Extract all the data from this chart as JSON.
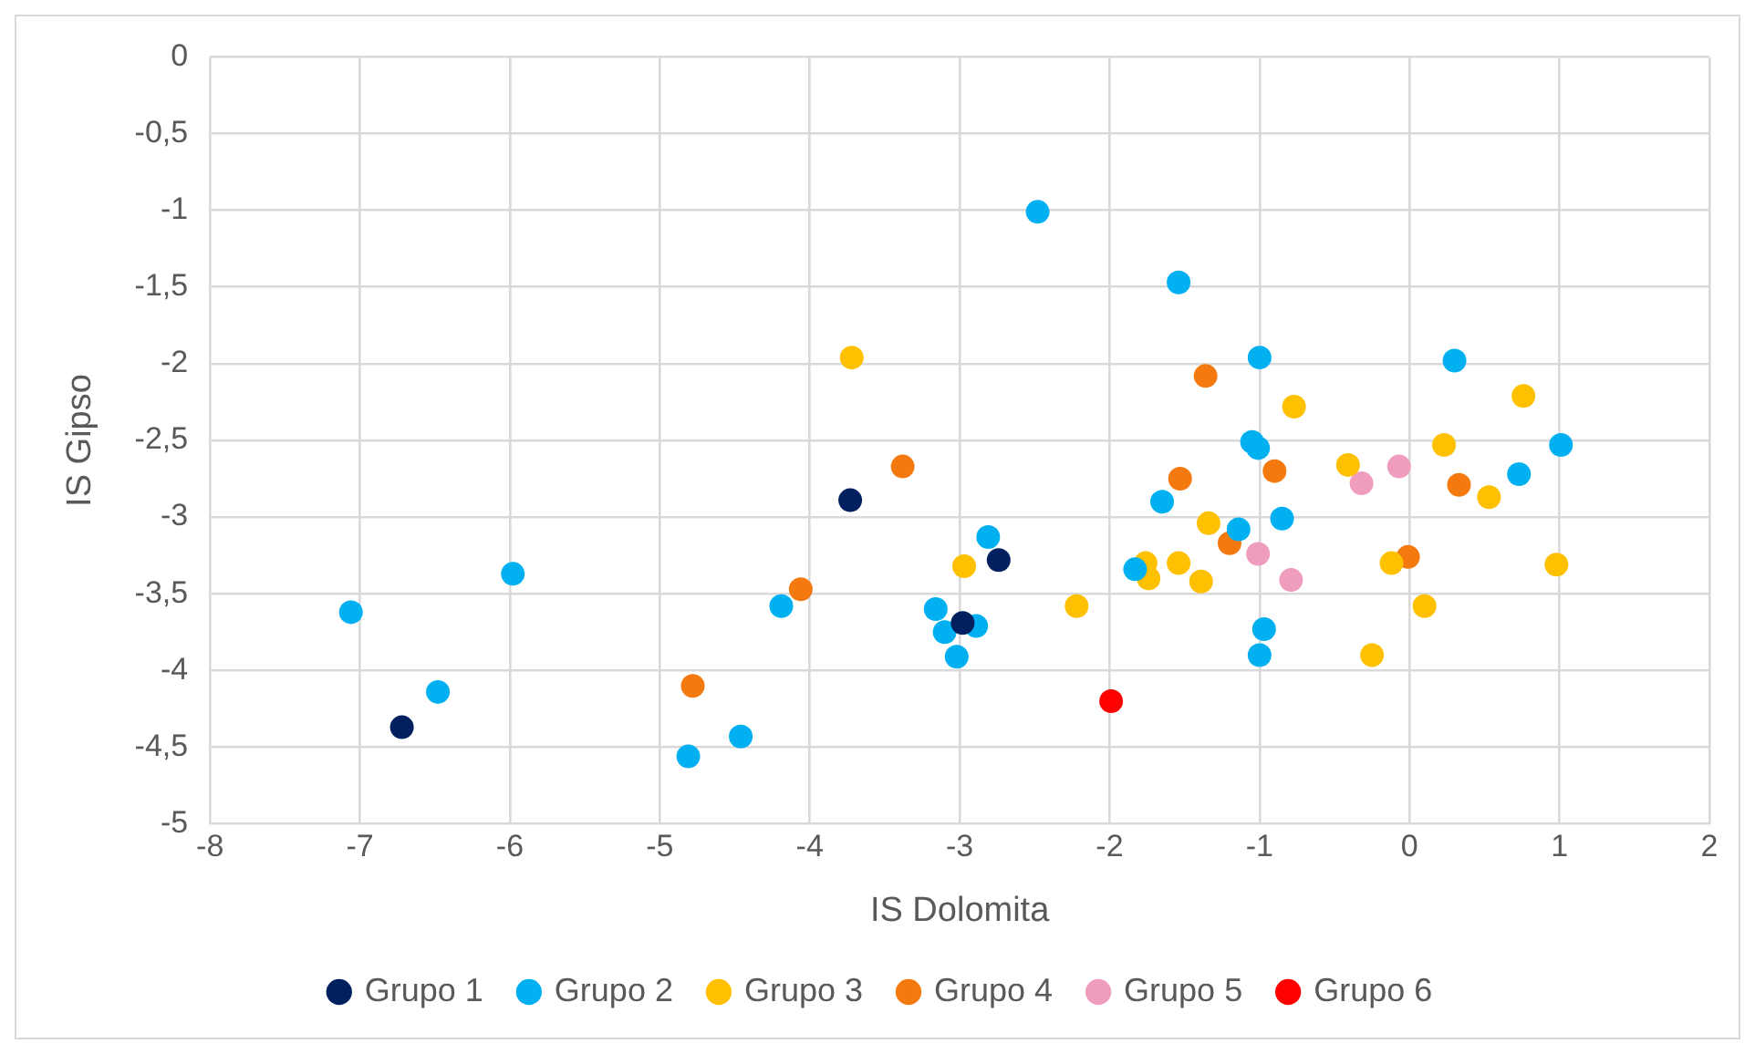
{
  "chart_data": {
    "type": "scatter",
    "xlabel": "IS Dolomita",
    "ylabel": "IS Gipso",
    "xlim": [
      -8,
      2
    ],
    "xticks": [
      -8,
      -7,
      -6,
      -5,
      -4,
      -3,
      -2,
      -1,
      0,
      1,
      2
    ],
    "ylim": [
      -5,
      0
    ],
    "yticks": [
      {
        "value": -5,
        "label": "-5"
      },
      {
        "value": -4.5,
        "label": "-4,5"
      },
      {
        "value": -4,
        "label": "-4"
      },
      {
        "value": -3.5,
        "label": "-3,5"
      },
      {
        "value": -3,
        "label": "-3"
      },
      {
        "value": -2.5,
        "label": "-2,5"
      },
      {
        "value": -2,
        "label": "-2"
      },
      {
        "value": -1.5,
        "label": "-1,5"
      },
      {
        "value": -1,
        "label": "-1"
      },
      {
        "value": -0.5,
        "label": "-0,5"
      },
      {
        "value": 0,
        "label": "0"
      }
    ],
    "grid": true,
    "legend": "bottom",
    "marker": "circle",
    "series": [
      {
        "name": "Grupo 1",
        "color": "#002060",
        "x": [
          -6.72,
          -3.73,
          -2.74,
          -2.98
        ],
        "values": [
          -4.37,
          -2.89,
          -3.28,
          -3.69
        ]
      },
      {
        "name": "Grupo 2",
        "color": "#00b0f0",
        "x": [
          -7.06,
          -6.48,
          -5.98,
          -4.81,
          -4.46,
          -4.19,
          -2.48,
          -1.54,
          -1.0,
          0.3,
          -1.05,
          -1.01,
          -1.65,
          0.73,
          1.01,
          -1.14,
          -0.85,
          -1.83,
          -0.97,
          -1.0,
          -3.16,
          -3.1,
          -3.02,
          -2.89,
          -2.81
        ],
        "values": [
          -3.62,
          -4.14,
          -3.37,
          -4.56,
          -4.43,
          -3.58,
          -1.01,
          -1.47,
          -1.96,
          -1.98,
          -2.51,
          -2.55,
          -2.9,
          -2.72,
          -2.53,
          -3.08,
          -3.01,
          -3.34,
          -3.73,
          -3.9,
          -3.6,
          -3.75,
          -3.91,
          -3.71,
          -3.13
        ]
      },
      {
        "name": "Grupo 3",
        "color": "#ffc000",
        "x": [
          -3.72,
          -2.97,
          -2.22,
          -0.77,
          0.76,
          0.23,
          -0.41,
          0.53,
          -1.34,
          -1.76,
          -1.74,
          -1.54,
          -1.39,
          -0.12,
          0.98,
          0.1,
          -0.25
        ],
        "values": [
          -1.96,
          -3.32,
          -3.58,
          -2.28,
          -2.21,
          -2.53,
          -2.66,
          -2.87,
          -3.04,
          -3.3,
          -3.4,
          -3.3,
          -3.42,
          -3.3,
          -3.31,
          -3.58,
          -3.9
        ]
      },
      {
        "name": "Grupo 4",
        "color": "#f47a10",
        "x": [
          -4.06,
          -4.78,
          -3.38,
          -1.36,
          -1.53,
          -0.9,
          0.33,
          -1.2,
          -0.01
        ],
        "values": [
          -3.47,
          -4.1,
          -2.67,
          -2.08,
          -2.75,
          -2.7,
          -2.79,
          -3.17,
          -3.26
        ]
      },
      {
        "name": "Grupo 5",
        "color": "#f09cbf",
        "x": [
          -0.32,
          -0.07,
          -1.01,
          -0.79
        ],
        "values": [
          -2.78,
          -2.67,
          -3.24,
          -3.41
        ]
      },
      {
        "name": "Grupo 6",
        "color": "#ff0000",
        "x": [
          -1.99
        ],
        "values": [
          -4.2
        ]
      }
    ]
  }
}
